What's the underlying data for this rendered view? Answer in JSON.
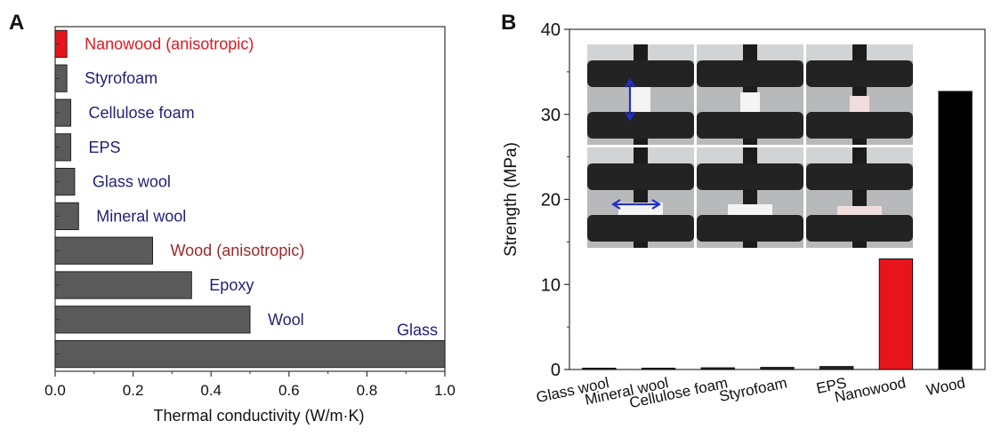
{
  "panels": [
    {
      "label": "A"
    },
    {
      "label": "B"
    }
  ],
  "chart_data": [
    {
      "type": "bar",
      "orientation": "horizontal",
      "categories": [
        "Nanowood (anisotropic)",
        "Styrofoam",
        "Cellulose foam",
        "EPS",
        "Glass wool",
        "Mineral wool",
        "Wood (anisotropic)",
        "Epoxy",
        "Wool",
        "Glass"
      ],
      "values": [
        0.03,
        0.03,
        0.04,
        0.04,
        0.05,
        0.06,
        0.25,
        0.35,
        0.5,
        1.0
      ],
      "label_colors": [
        "#e8141c",
        "#1f1f7a",
        "#1f1f7a",
        "#1f1f7a",
        "#1f1f7a",
        "#1f1f7a",
        "#9a2a2a",
        "#1f1f7a",
        "#1f1f7a",
        "#1f1f7a"
      ],
      "bar_colors": [
        "#e8141c",
        "#5a5a5a",
        "#5a5a5a",
        "#5a5a5a",
        "#5a5a5a",
        "#5a5a5a",
        "#5a5a5a",
        "#5a5a5a",
        "#5a5a5a",
        "#5a5a5a"
      ],
      "xlabel": "Thermal conductivity (W/m·K)",
      "xlim": [
        0,
        1.0
      ],
      "xticks": [
        "0.0",
        "0.2",
        "0.4",
        "0.6",
        "0.8",
        "1.0"
      ],
      "grid": false
    },
    {
      "type": "bar",
      "categories": [
        "Glass wool",
        "Mineral wool",
        "Cellulose foam",
        "Styrofoam",
        "EPS",
        "Nanowood",
        "Wood"
      ],
      "values": [
        0.0,
        0.0,
        0.2,
        0.25,
        0.35,
        13.0,
        32.7
      ],
      "bar_colors": [
        "#222222",
        "#222222",
        "#222222",
        "#222222",
        "#222222",
        "#e8141c",
        "#000000"
      ],
      "ylabel": "Strength (MPa)",
      "ylim": [
        0,
        40
      ],
      "yticks": [
        "0",
        "10",
        "20",
        "30",
        "40"
      ],
      "grid": false,
      "inset": "compression test photos (3×2 grid)"
    }
  ]
}
